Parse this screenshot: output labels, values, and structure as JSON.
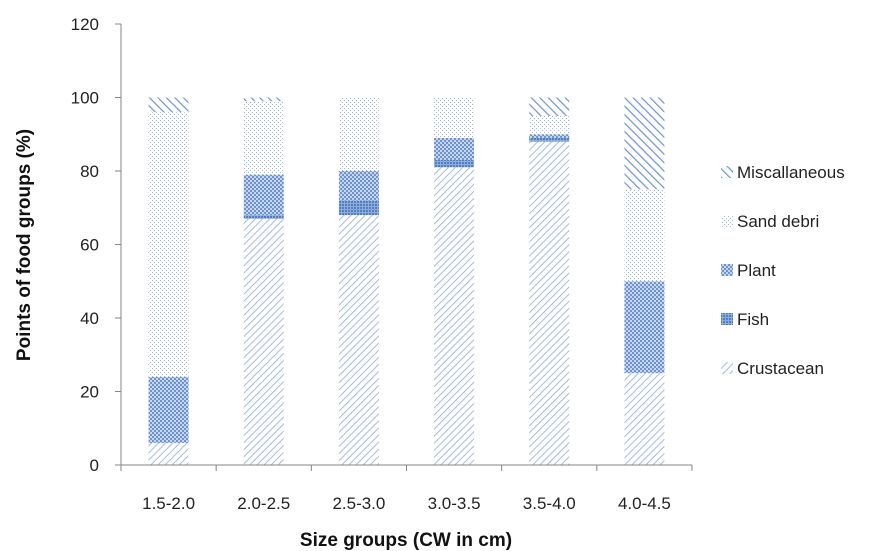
{
  "chart_data": {
    "type": "bar",
    "stacked": true,
    "xlabel": "Size groups (CW in cm)",
    "ylabel": "Points of food groups (%)",
    "ylim": [
      0,
      120
    ],
    "yticks": [
      0,
      20,
      40,
      60,
      80,
      100,
      120
    ],
    "grid": false,
    "legend_position": "right",
    "categories": [
      "1.5-2.0",
      "2.0-2.5",
      "2.5-3.0",
      "3.0-3.5",
      "3.5-4.0",
      "4.0-4.5"
    ],
    "series": [
      {
        "name": "Crustacean",
        "pattern": "diagonal-fine",
        "color": "#8FAADC",
        "values": [
          6,
          67,
          68,
          81,
          88,
          25
        ]
      },
      {
        "name": "Fish",
        "pattern": "dense-dots",
        "color": "#4F81BD",
        "values": [
          0,
          1,
          4,
          2,
          1,
          0
        ]
      },
      {
        "name": "Plant",
        "pattern": "medium-dots",
        "color": "#7EA0D8",
        "values": [
          18,
          11,
          8,
          6,
          1,
          25
        ]
      },
      {
        "name": "Sand debri",
        "pattern": "sparse-dots",
        "color": "#A9C0E4",
        "values": [
          72,
          20,
          20,
          11,
          5,
          25
        ]
      },
      {
        "name": "Miscallaneous",
        "pattern": "diagonal-wide",
        "color": "#6F93CE",
        "values": [
          4,
          1,
          0,
          0,
          5,
          25
        ]
      }
    ]
  }
}
